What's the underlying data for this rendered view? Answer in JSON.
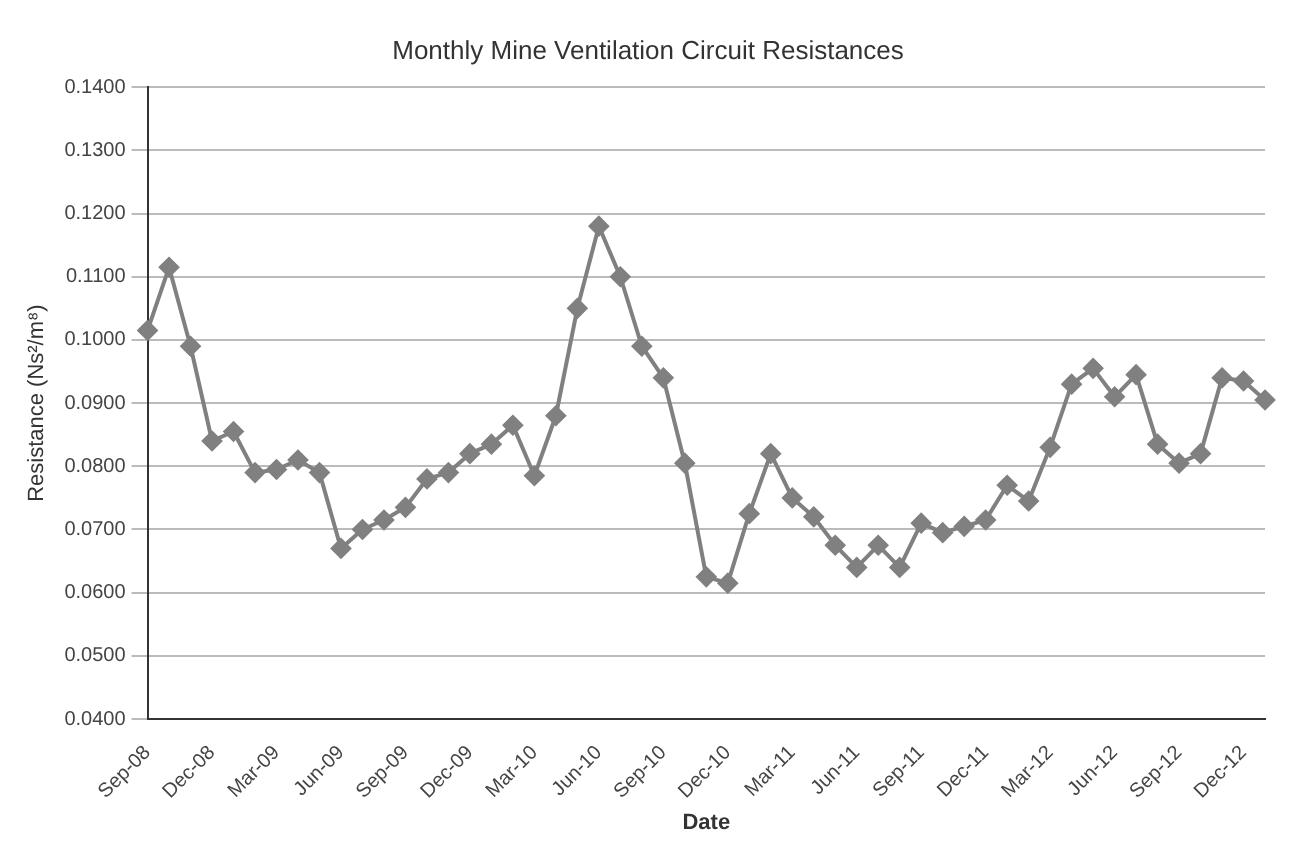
{
  "chart_data": {
    "type": "line",
    "title": "Monthly Mine Ventilation Circuit Resistances",
    "xlabel": "Date",
    "ylabel": "Resistance (Ns²/m⁸)",
    "categories": [
      "Sep-08",
      null,
      null,
      "Dec-08",
      null,
      null,
      "Mar-09",
      null,
      null,
      "Jun-09",
      null,
      null,
      "Sep-09",
      null,
      null,
      "Dec-09",
      null,
      null,
      "Mar-10",
      null,
      null,
      "Jun-10",
      null,
      null,
      "Sep-10",
      null,
      null,
      "Dec-10",
      null,
      null,
      "Mar-11",
      null,
      null,
      "Jun-11",
      null,
      null,
      "Sep-11",
      null,
      null,
      "Dec-11",
      null,
      null,
      "Mar-12",
      null,
      null,
      "Jun-12",
      null,
      null,
      "Sep-12",
      null,
      null,
      "Dec-12",
      null
    ],
    "series": [
      {
        "color": "#808080",
        "values": [
          0.1015,
          0.1115,
          0.099,
          0.084,
          0.0855,
          0.079,
          0.0795,
          0.081,
          0.079,
          0.067,
          0.07,
          0.0715,
          0.0735,
          0.078,
          0.079,
          0.082,
          0.0835,
          0.0865,
          0.0785,
          0.088,
          0.105,
          0.118,
          0.11,
          0.099,
          0.094,
          0.0805,
          0.0625,
          0.0615,
          0.0725,
          0.082,
          0.075,
          0.072,
          0.0675,
          0.064,
          0.0675,
          0.064,
          0.071,
          0.0695,
          0.0705,
          0.0715,
          0.077,
          0.0745,
          0.083,
          0.093,
          0.0955,
          0.091,
          0.0945,
          0.0835,
          0.0805,
          0.082,
          0.094,
          0.0935,
          0.0905
        ]
      }
    ],
    "ylim": [
      0.04,
      0.14
    ],
    "yticks": [
      {
        "value": 0.04,
        "label": "0.0400"
      },
      {
        "value": 0.05,
        "label": "0.0500"
      },
      {
        "value": 0.06,
        "label": "0.0600"
      },
      {
        "value": 0.07,
        "label": "0.0700"
      },
      {
        "value": 0.08,
        "label": "0.0800"
      },
      {
        "value": 0.09,
        "label": "0.0900"
      },
      {
        "value": 0.1,
        "label": "0.1000"
      },
      {
        "value": 0.11,
        "label": "0.1100"
      },
      {
        "value": 0.12,
        "label": "0.1200"
      },
      {
        "value": 0.13,
        "label": "0.1300"
      },
      {
        "value": 0.14,
        "label": "0.1400"
      }
    ],
    "grid": "y",
    "legend": false,
    "marker": "diamond",
    "line_style": "solid"
  }
}
